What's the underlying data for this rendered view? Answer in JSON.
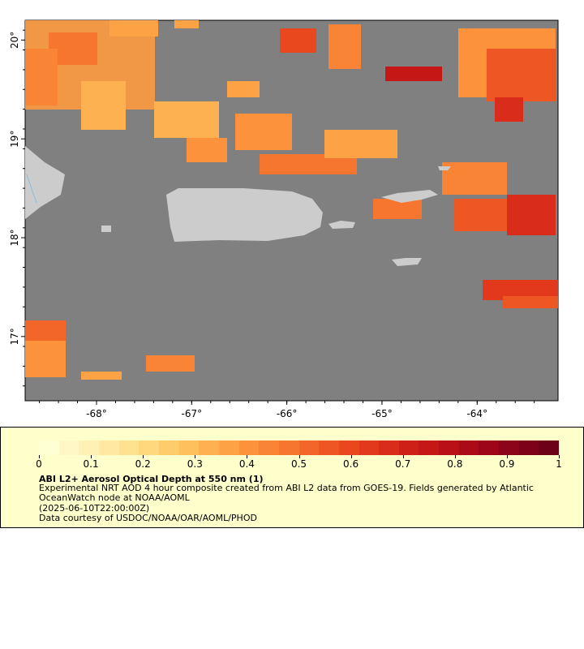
{
  "map": {
    "background_color": "#808080",
    "land_color": "#cccccc",
    "lon_ticks": [
      {
        "label": "-68°",
        "lon": -68
      },
      {
        "label": "-67°",
        "lon": -67
      },
      {
        "label": "-66°",
        "lon": -66
      },
      {
        "label": "-65°",
        "lon": -65
      },
      {
        "label": "-64°",
        "lon": -64
      }
    ],
    "lat_ticks": [
      {
        "label": "20°",
        "lat": 20
      },
      {
        "label": "19°",
        "lat": 19
      },
      {
        "label": "18°",
        "lat": 18
      },
      {
        "label": "17°",
        "lat": 17
      }
    ],
    "lon_range": [
      -68.75,
      -63.15
    ],
    "lat_range": [
      16.35,
      20.2
    ]
  },
  "legend": {
    "colorbar_colors": [
      "#ffffd4",
      "#fff8c6",
      "#fff1b4",
      "#ffe9a2",
      "#ffe28f",
      "#ffd77c",
      "#fecc6a",
      "#febf5c",
      "#fdb150",
      "#fda245",
      "#fc933c",
      "#fa8435",
      "#f7762f",
      "#f36629",
      "#ee5724",
      "#e9481f",
      "#e2391c",
      "#d92c1a",
      "#cf2018",
      "#c41716",
      "#b81016",
      "#ab0a17",
      "#9c0618",
      "#8c0419",
      "#7c0219",
      "#6d0117"
    ],
    "ticks": [
      "0",
      "0.1",
      "0.2",
      "0.3",
      "0.4",
      "0.5",
      "0.6",
      "0.7",
      "0.8",
      "0.9",
      "1"
    ],
    "title": "ABI L2+ Aerosol Optical Depth at 550 nm (1)",
    "description": "Experimental NRT AOD 4 hour composite created from ABI L2 data from GOES-19. Fields generated by Atlantic OceanWatch node at NOAA/AOML",
    "date": "(2025-06-10T22:00:00Z)",
    "credit": "Data courtesy of USDOC/NOAA/OAR/AOML/PHOD"
  }
}
